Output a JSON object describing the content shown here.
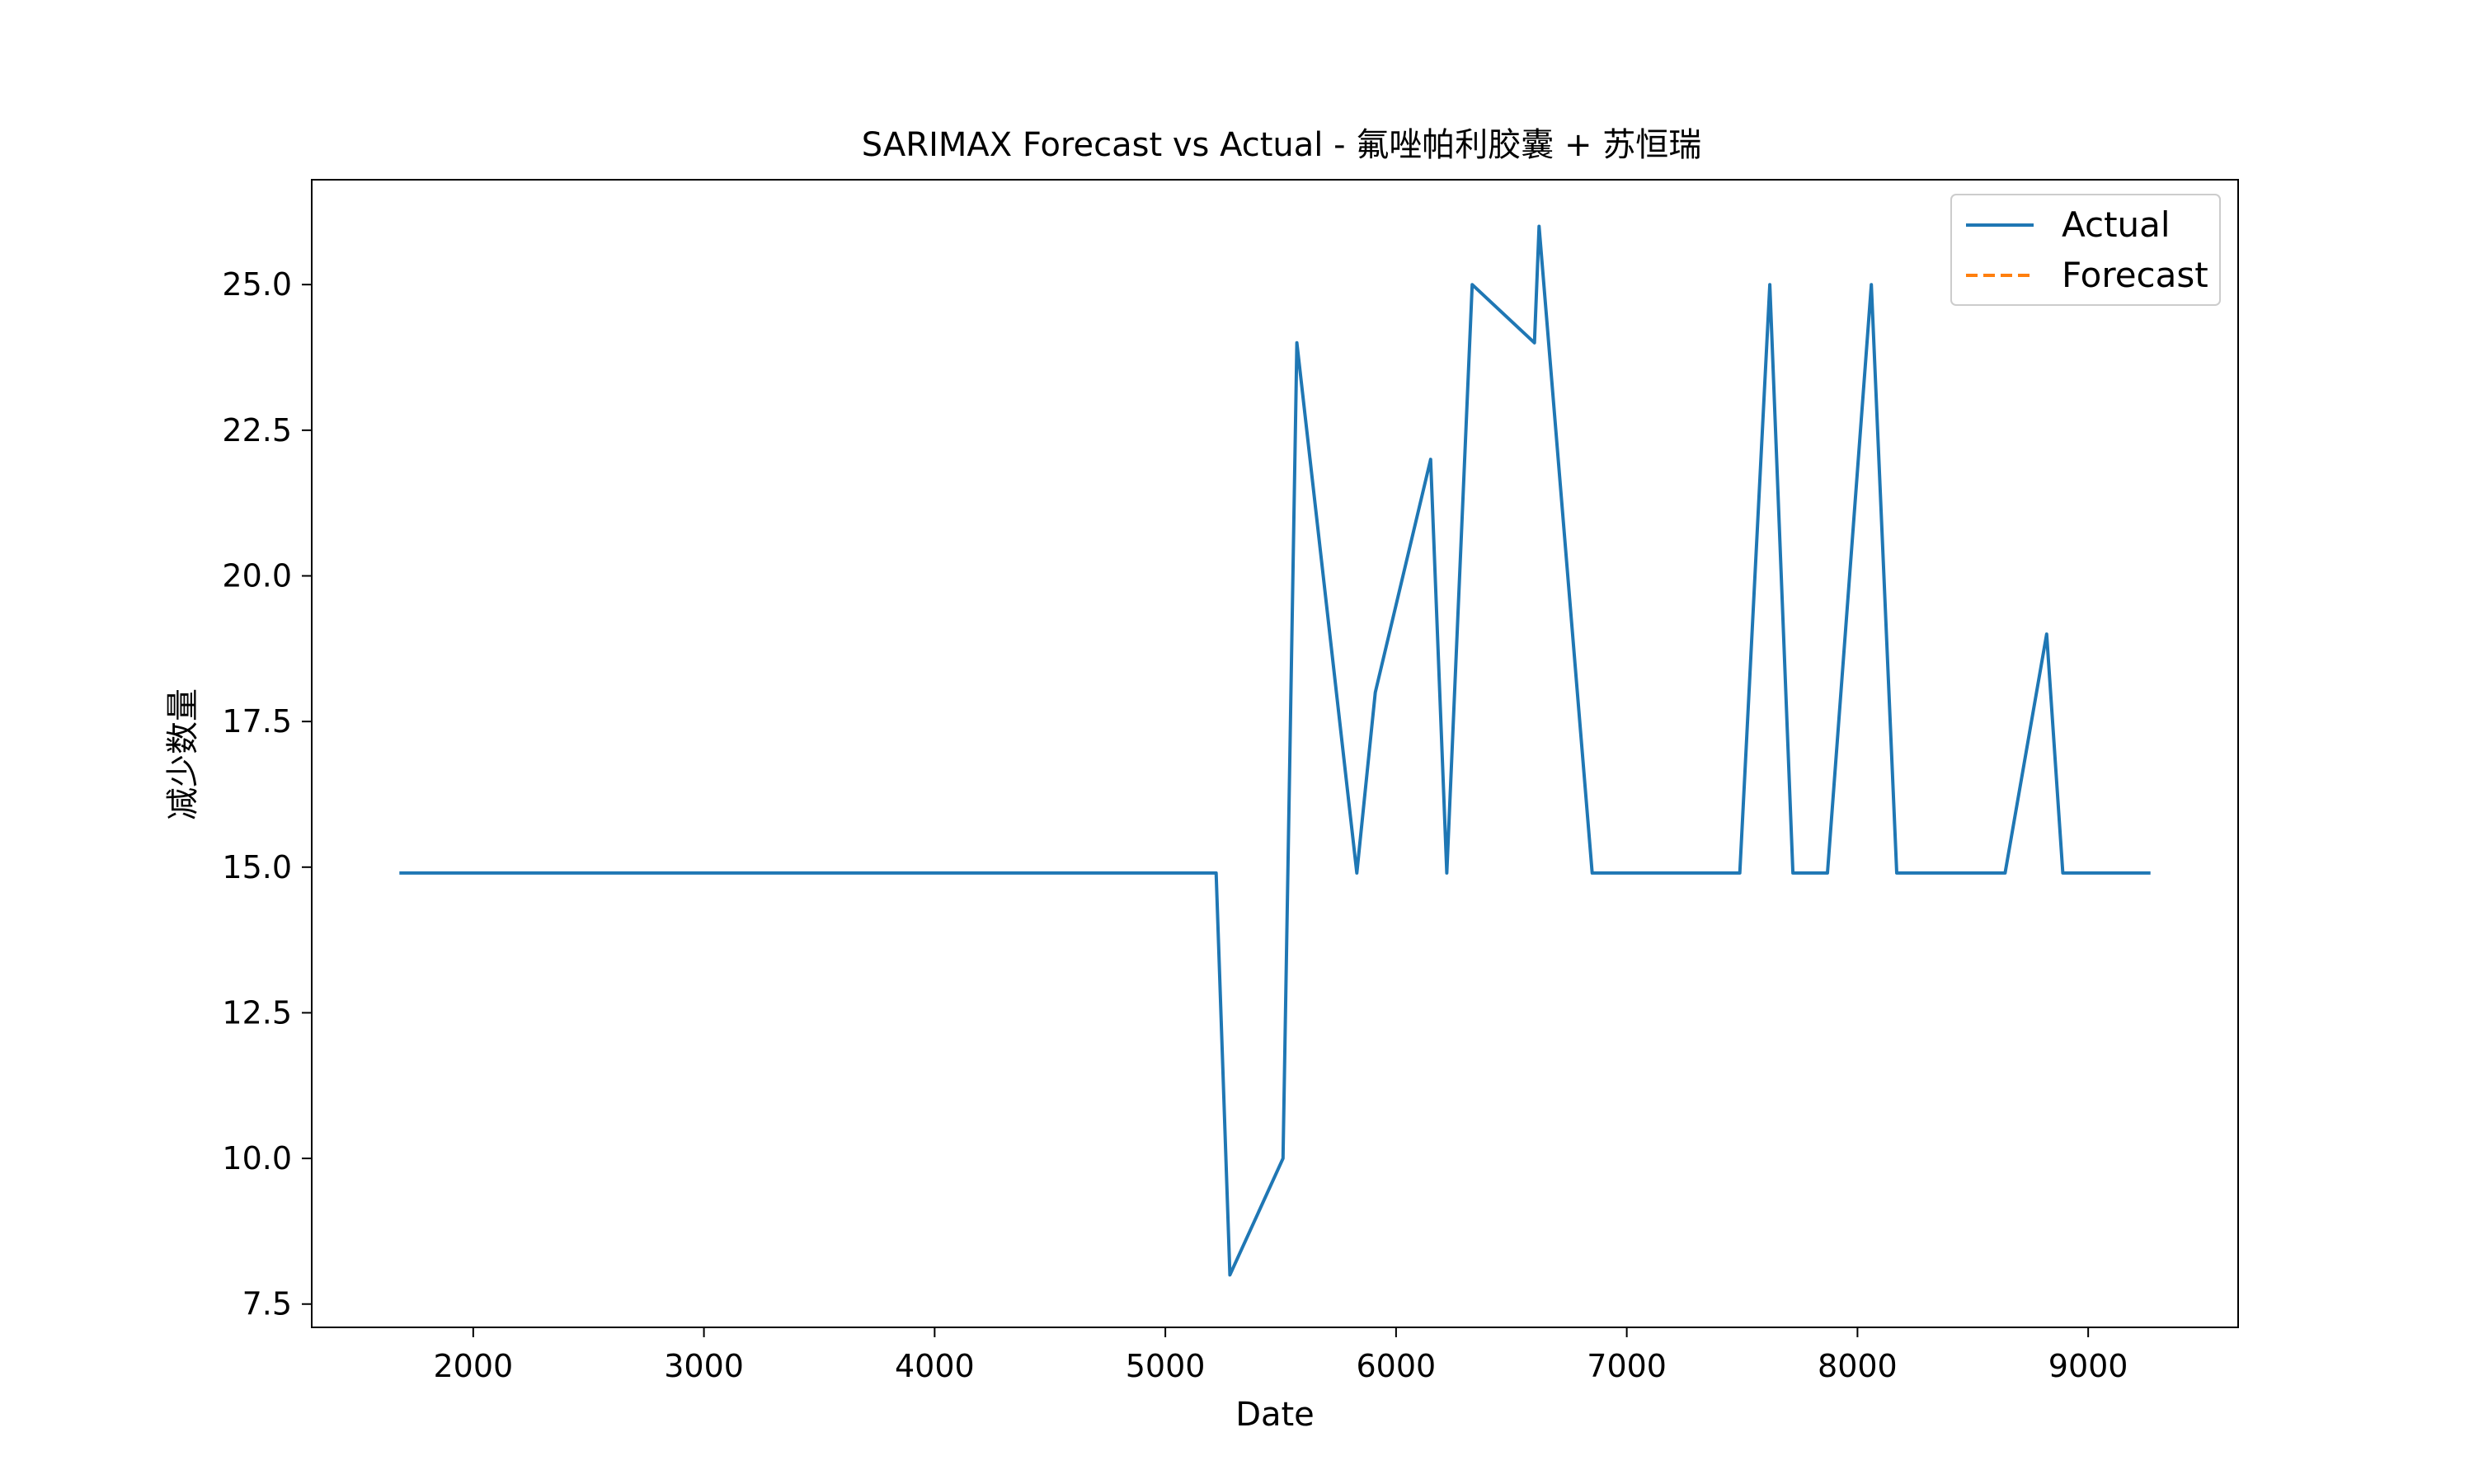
{
  "chart_data": {
    "type": "line",
    "title": "SARIMAX Forecast vs Actual - 氟唑帕利胶囊 + 苏恒瑞",
    "xlabel": "Date",
    "ylabel": "减少数量",
    "xlim": [
      1300,
      9650
    ],
    "ylim": [
      7.1,
      26.8
    ],
    "x_ticks": [
      2000,
      3000,
      4000,
      5000,
      6000,
      7000,
      8000,
      9000
    ],
    "y_ticks": [
      7.5,
      10.0,
      12.5,
      15.0,
      17.5,
      20.0,
      22.5,
      25.0
    ],
    "grid": false,
    "legend": {
      "position": "top-right",
      "entries": [
        "Actual",
        "Forecast"
      ]
    },
    "series": [
      {
        "name": "Actual",
        "color": "#1f77b4",
        "style": "solid",
        "x": [
          1680,
          5220,
          5280,
          5510,
          5570,
          5830,
          5910,
          6150,
          6220,
          6330,
          6600,
          6620,
          6850,
          7490,
          7620,
          7720,
          7870,
          8060,
          8170,
          8640,
          8820,
          8890,
          9270
        ],
        "y": [
          14.9,
          14.9,
          8.0,
          10.0,
          24.0,
          14.9,
          18.0,
          22.0,
          14.9,
          25.0,
          24.0,
          26.0,
          14.9,
          14.9,
          25.0,
          14.9,
          14.9,
          25.0,
          14.9,
          14.9,
          19.0,
          14.9,
          14.9
        ]
      },
      {
        "name": "Forecast",
        "color": "#ff7f0e",
        "style": "dashed",
        "x": [],
        "y": []
      }
    ]
  }
}
